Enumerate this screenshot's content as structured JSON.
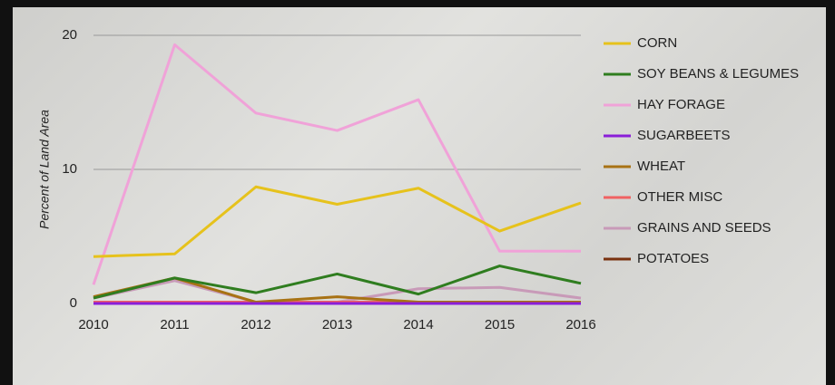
{
  "chart_data": {
    "type": "line",
    "y_label": "Percent of Land Area",
    "x": [
      2010,
      2011,
      2012,
      2013,
      2014,
      2015,
      2016
    ],
    "xticks": [
      2010,
      2011,
      2012,
      2013,
      2014,
      2015,
      2016
    ],
    "xlim": [
      2010,
      2016
    ],
    "ylim": [
      0,
      20
    ],
    "yticks": [
      0,
      10,
      20
    ],
    "grid": true,
    "legend": "right",
    "series": [
      {
        "name": "CORN",
        "color": "#e6c21c",
        "values": [
          3.5,
          3.7,
          8.7,
          7.4,
          8.6,
          5.4,
          7.5
        ]
      },
      {
        "name": "SOY BEANS & LEGUMES",
        "color": "#2f7d1f",
        "values": [
          0.4,
          1.9,
          0.8,
          2.2,
          0.7,
          2.8,
          1.5
        ]
      },
      {
        "name": "HAY FORAGE",
        "color": "#f0a2d8",
        "values": [
          1.4,
          19.3,
          14.2,
          12.9,
          15.2,
          3.9,
          3.9
        ]
      },
      {
        "name": "SUGARBEETS",
        "color": "#8a1ed8",
        "values": [
          0,
          0,
          0,
          0,
          0,
          0,
          0
        ]
      },
      {
        "name": "WHEAT",
        "color": "#a87214",
        "values": [
          0.5,
          1.9,
          0.1,
          0.5,
          0.1,
          0.1,
          0.1
        ]
      },
      {
        "name": "OTHER MISC",
        "color": "#f06262",
        "values": [
          0.1,
          0.1,
          0.1,
          0.1,
          0.1,
          0.1,
          0.1
        ]
      },
      {
        "name": "GRAINS AND SEEDS",
        "color": "#c89ab8",
        "values": [
          0.4,
          1.7,
          0.1,
          0.1,
          1.1,
          1.2,
          0.4
        ]
      },
      {
        "name": "POTATOES",
        "color": "#7a3210",
        "values": [
          0.1,
          0.1,
          0.1,
          0.1,
          0.1,
          0.1,
          0.1
        ]
      }
    ]
  }
}
